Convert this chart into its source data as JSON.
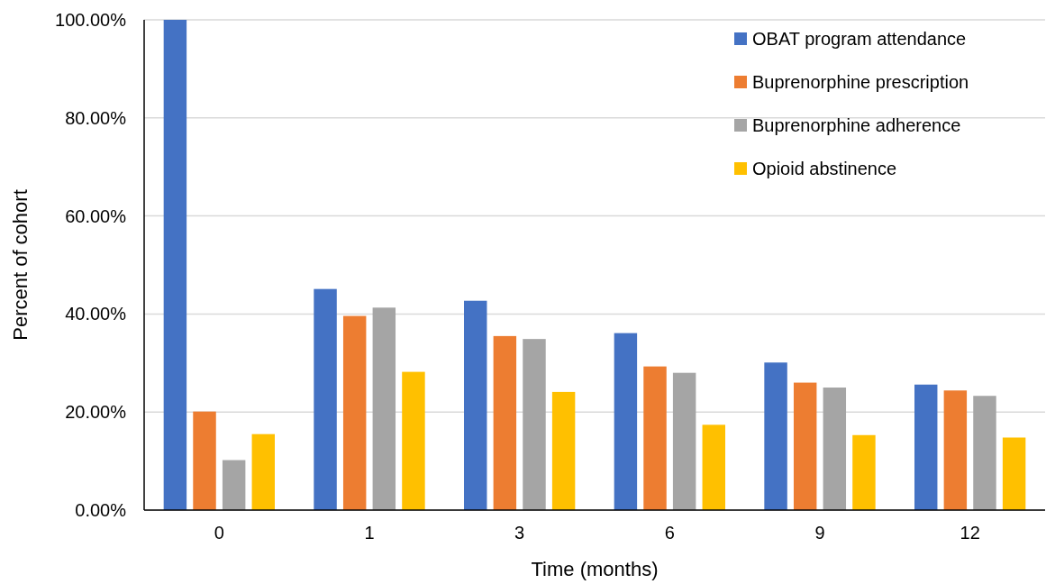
{
  "chart_data": {
    "type": "bar",
    "xlabel": "Time (months)",
    "ylabel": "Percent of cohort",
    "categories": [
      "0",
      "1",
      "3",
      "6",
      "9",
      "12"
    ],
    "series": [
      {
        "name": "OBAT program attendance",
        "color": "#4472c4",
        "values": [
          100,
          45.1,
          42.7,
          36.1,
          30.1,
          25.6
        ]
      },
      {
        "name": "Buprenorphine prescription",
        "color": "#ed7d31",
        "values": [
          20.1,
          39.6,
          35.5,
          29.3,
          26.0,
          24.4
        ]
      },
      {
        "name": "Buprenorphine adherence",
        "color": "#a5a5a5",
        "values": [
          10.2,
          41.3,
          34.9,
          28.0,
          25.0,
          23.3
        ]
      },
      {
        "name": "Opioid abstinence",
        "color": "#ffc000",
        "values": [
          15.5,
          28.2,
          24.1,
          17.4,
          15.3,
          14.8
        ]
      }
    ],
    "ylim": [
      0,
      100
    ],
    "yticks": [
      {
        "value": 0,
        "label": "0.00%"
      },
      {
        "value": 20,
        "label": "20.00%"
      },
      {
        "value": 40,
        "label": "40.00%"
      },
      {
        "value": 60,
        "label": "60.00%"
      },
      {
        "value": 80,
        "label": "80.00%"
      },
      {
        "value": 100,
        "label": "100.00%"
      }
    ],
    "grid": "y",
    "legend": "top right"
  }
}
